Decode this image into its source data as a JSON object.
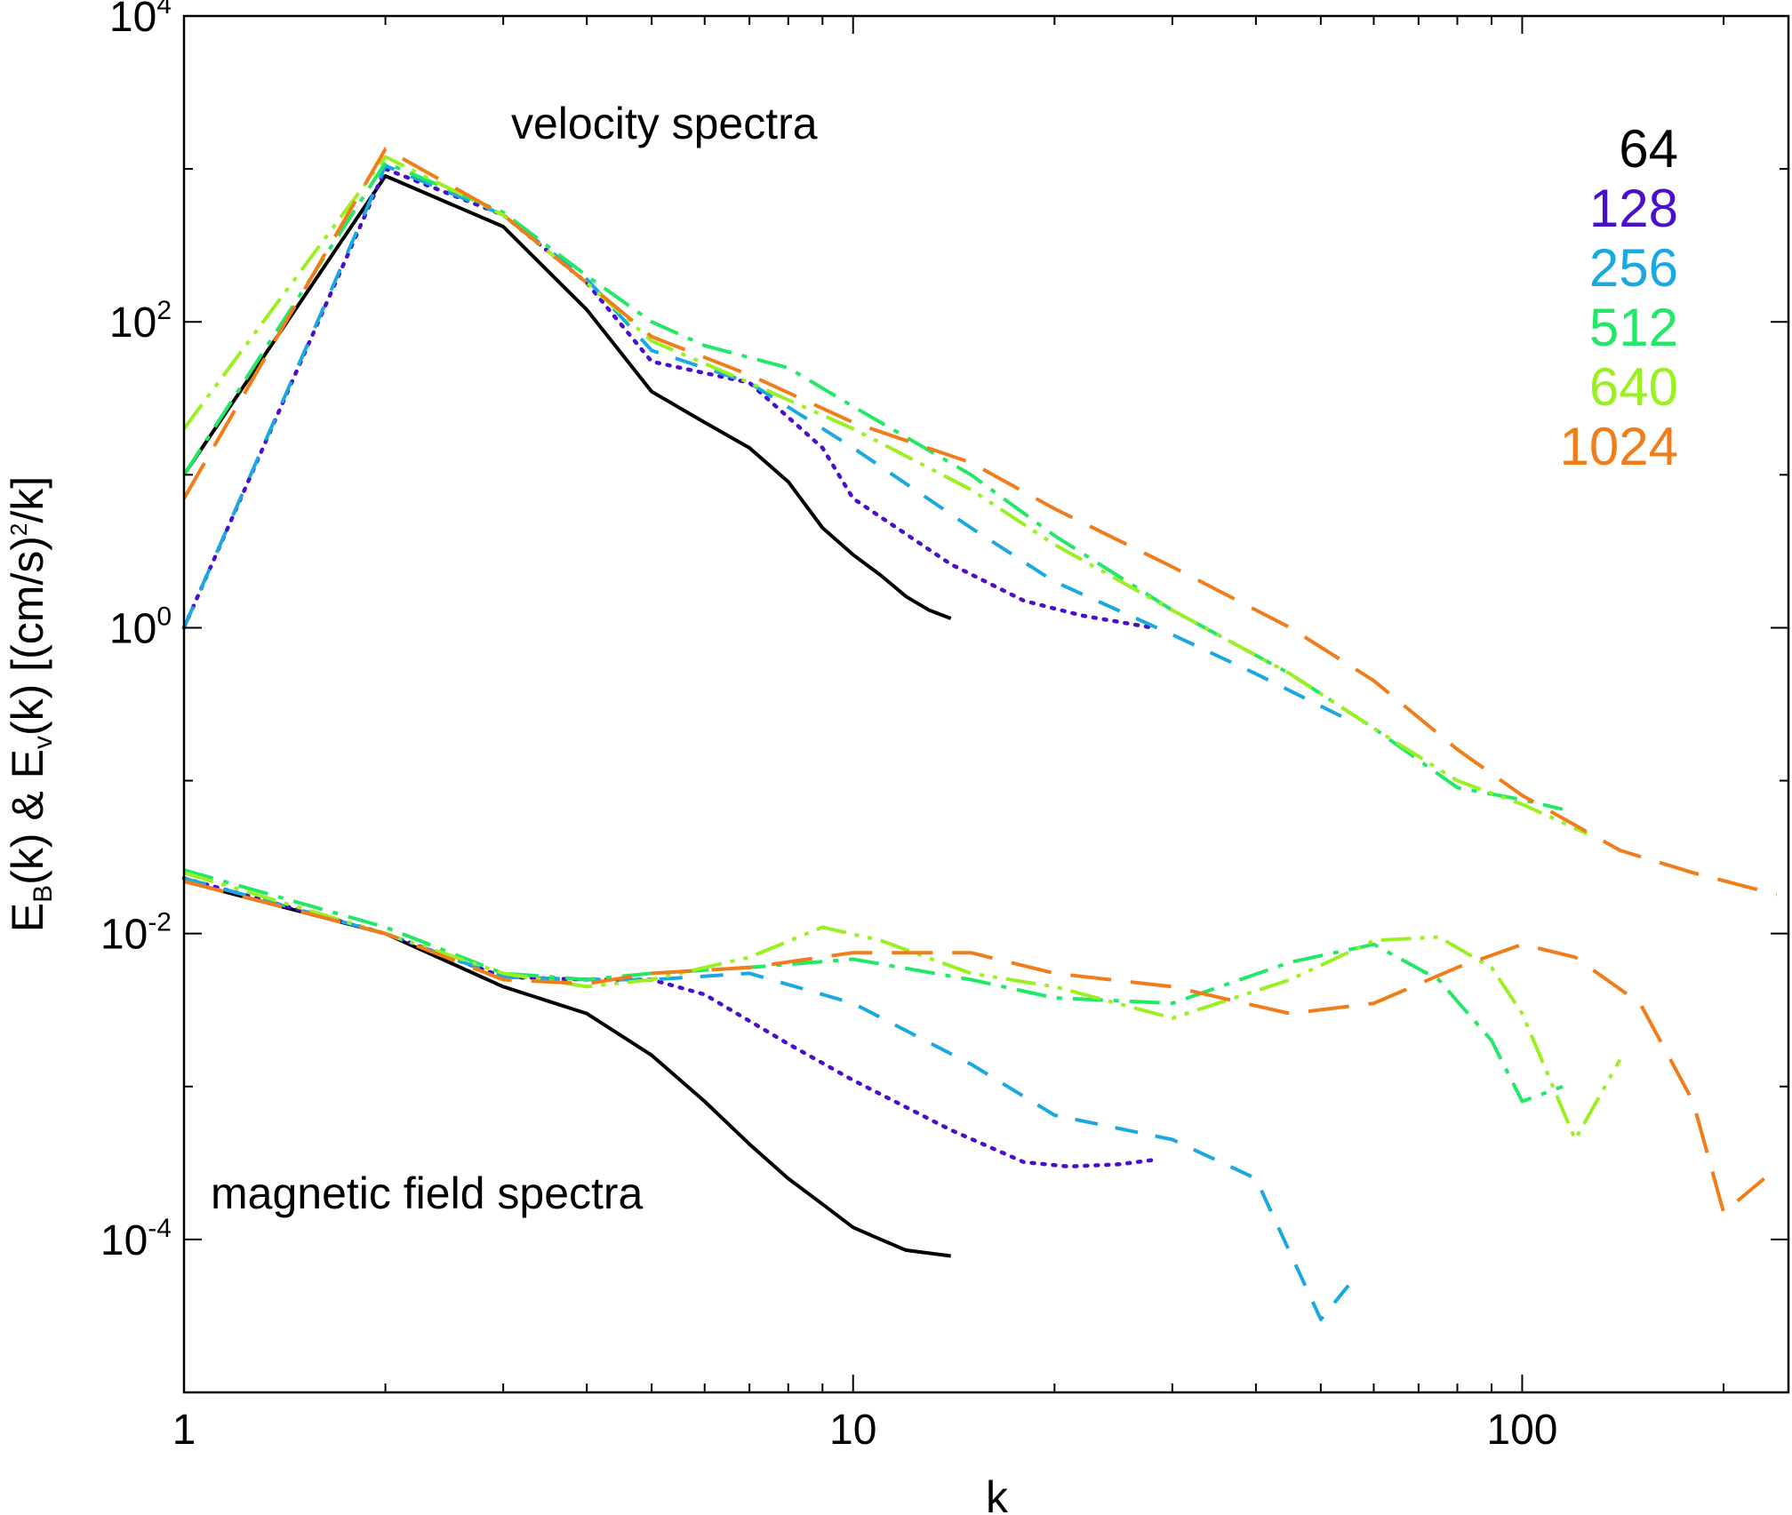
{
  "chart_data": {
    "type": "line",
    "x_scale": "log",
    "y_scale": "log",
    "xlim": [
      1,
      250
    ],
    "ylim": [
      1e-05,
      10000
    ],
    "xlabel": "k",
    "ylabel": {
      "parts": [
        "E",
        "B",
        "(k) & E",
        "v",
        "(k) [(cm/s)",
        "2",
        "/k]"
      ]
    },
    "x_ticks": [
      {
        "value": 1,
        "label": "1"
      },
      {
        "value": 10,
        "label": "10"
      },
      {
        "value": 100,
        "label": "100"
      }
    ],
    "y_ticks": [
      {
        "value": 0.0001,
        "base": "10",
        "exp": "-4"
      },
      {
        "value": 0.01,
        "base": "10",
        "exp": "-2"
      },
      {
        "value": 1,
        "base": "10",
        "exp": "0"
      },
      {
        "value": 100,
        "base": "10",
        "exp": "2"
      },
      {
        "value": 10000,
        "base": "10",
        "exp": "4"
      }
    ],
    "annotations": [
      "velocity spectra",
      "magnetic field spectra"
    ],
    "grid": false,
    "legend_position": "top-right",
    "series": [
      {
        "name": "64",
        "color": "#000000",
        "style": "solid",
        "velocity": [
          [
            1,
            10
          ],
          [
            2,
            900
          ],
          [
            3,
            420
          ],
          [
            4,
            120
          ],
          [
            5,
            35
          ],
          [
            6,
            22
          ],
          [
            7,
            15
          ],
          [
            8,
            9
          ],
          [
            9,
            4.5
          ],
          [
            10,
            3
          ],
          [
            11,
            2.2
          ],
          [
            12,
            1.6
          ],
          [
            13,
            1.3
          ],
          [
            14,
            1.15
          ]
        ],
        "magnetic": [
          [
            1,
            0.022
          ],
          [
            2,
            0.01
          ],
          [
            3,
            0.0045
          ],
          [
            4,
            0.003
          ],
          [
            5,
            0.0016
          ],
          [
            6,
            0.0008
          ],
          [
            7,
            0.00042
          ],
          [
            8,
            0.00025
          ],
          [
            9,
            0.00017
          ],
          [
            10,
            0.00012
          ],
          [
            11,
            0.0001
          ],
          [
            12,
            8.5e-05
          ],
          [
            14,
            7.8e-05
          ]
        ]
      },
      {
        "name": "128",
        "color": "#4a0fcc",
        "style": "dotted",
        "velocity": [
          [
            1,
            1
          ],
          [
            2,
            1000
          ],
          [
            3,
            500
          ],
          [
            4,
            180
          ],
          [
            5,
            55
          ],
          [
            7,
            40
          ],
          [
            9,
            15
          ],
          [
            10,
            7
          ],
          [
            14,
            2.6
          ],
          [
            18,
            1.5
          ],
          [
            22,
            1.2
          ],
          [
            28,
            1.0
          ]
        ],
        "magnetic": [
          [
            1,
            0.023
          ],
          [
            2,
            0.01
          ],
          [
            3,
            0.0052
          ],
          [
            4,
            0.005
          ],
          [
            5,
            0.005
          ],
          [
            6,
            0.004
          ],
          [
            8,
            0.0019
          ],
          [
            10,
            0.0011
          ],
          [
            14,
            0.00052
          ],
          [
            18,
            0.00032
          ],
          [
            21,
            0.0003
          ],
          [
            25,
            0.00031
          ],
          [
            28,
            0.00033
          ]
        ]
      },
      {
        "name": "256",
        "color": "#1aa8e0",
        "style": "dashed",
        "velocity": [
          [
            1,
            1
          ],
          [
            2,
            1050
          ],
          [
            3,
            500
          ],
          [
            4,
            190
          ],
          [
            5,
            65
          ],
          [
            7,
            40
          ],
          [
            10,
            15
          ],
          [
            15,
            4.5
          ],
          [
            20,
            2
          ],
          [
            30,
            0.9
          ],
          [
            40,
            0.5
          ],
          [
            55,
            0.25
          ]
        ],
        "magnetic": [
          [
            1,
            0.023
          ],
          [
            2,
            0.01
          ],
          [
            3,
            0.0052
          ],
          [
            4,
            0.005
          ],
          [
            5,
            0.005
          ],
          [
            7,
            0.0055
          ],
          [
            10,
            0.0035
          ],
          [
            15,
            0.0014
          ],
          [
            20,
            0.00065
          ],
          [
            30,
            0.00045
          ],
          [
            40,
            0.00025
          ],
          [
            50,
            3e-05
          ],
          [
            55,
            5e-05
          ]
        ]
      },
      {
        "name": "512",
        "color": "#22e868",
        "style": "dash-dot",
        "velocity": [
          [
            1,
            10
          ],
          [
            2,
            1100
          ],
          [
            3,
            520
          ],
          [
            4,
            200
          ],
          [
            5,
            100
          ],
          [
            6,
            70
          ],
          [
            8,
            50
          ],
          [
            10,
            28
          ],
          [
            15,
            10
          ],
          [
            20,
            4
          ],
          [
            30,
            1.3
          ],
          [
            45,
            0.5
          ],
          [
            60,
            0.22
          ],
          [
            80,
            0.09
          ],
          [
            100,
            0.075
          ],
          [
            115,
            0.065
          ]
        ],
        "magnetic": [
          [
            1,
            0.026
          ],
          [
            2,
            0.011
          ],
          [
            3,
            0.0055
          ],
          [
            4,
            0.005
          ],
          [
            5,
            0.0055
          ],
          [
            7,
            0.006
          ],
          [
            10,
            0.0068
          ],
          [
            15,
            0.005
          ],
          [
            20,
            0.0038
          ],
          [
            30,
            0.0035
          ],
          [
            45,
            0.0065
          ],
          [
            60,
            0.0085
          ],
          [
            75,
            0.005
          ],
          [
            90,
            0.002
          ],
          [
            100,
            0.0008
          ],
          [
            115,
            0.001
          ]
        ]
      },
      {
        "name": "640",
        "color": "#9af020",
        "style": "dash-dot-dot",
        "velocity": [
          [
            1,
            20
          ],
          [
            2,
            1200
          ],
          [
            3,
            500
          ],
          [
            4,
            180
          ],
          [
            5,
            75
          ],
          [
            7,
            40
          ],
          [
            10,
            20
          ],
          [
            15,
            8
          ],
          [
            20,
            3.5
          ],
          [
            30,
            1.3
          ],
          [
            45,
            0.5
          ],
          [
            60,
            0.22
          ],
          [
            80,
            0.1
          ],
          [
            100,
            0.07
          ],
          [
            125,
            0.045
          ]
        ],
        "magnetic": [
          [
            1,
            0.025
          ],
          [
            2,
            0.01
          ],
          [
            3,
            0.0055
          ],
          [
            4,
            0.0045
          ],
          [
            5,
            0.005
          ],
          [
            7,
            0.007
          ],
          [
            9,
            0.011
          ],
          [
            11,
            0.009
          ],
          [
            15,
            0.0055
          ],
          [
            20,
            0.0045
          ],
          [
            30,
            0.0028
          ],
          [
            45,
            0.005
          ],
          [
            60,
            0.009
          ],
          [
            75,
            0.0095
          ],
          [
            90,
            0.006
          ],
          [
            100,
            0.003
          ],
          [
            120,
            0.00045
          ],
          [
            140,
            0.0015
          ]
        ]
      },
      {
        "name": "1024",
        "color": "#f07d1a",
        "style": "long-dashed",
        "velocity": [
          [
            1,
            7
          ],
          [
            2,
            1350
          ],
          [
            3,
            500
          ],
          [
            4,
            180
          ],
          [
            5,
            80
          ],
          [
            7,
            45
          ],
          [
            10,
            22
          ],
          [
            15,
            12
          ],
          [
            20,
            6
          ],
          [
            30,
            2.5
          ],
          [
            45,
            1
          ],
          [
            60,
            0.45
          ],
          [
            80,
            0.16
          ],
          [
            100,
            0.08
          ],
          [
            140,
            0.035
          ],
          [
            180,
            0.025
          ],
          [
            240,
            0.018
          ]
        ],
        "magnetic": [
          [
            1,
            0.022
          ],
          [
            2,
            0.01
          ],
          [
            3,
            0.005
          ],
          [
            4,
            0.0047
          ],
          [
            5,
            0.0055
          ],
          [
            7,
            0.006
          ],
          [
            10,
            0.0075
          ],
          [
            15,
            0.0075
          ],
          [
            20,
            0.0055
          ],
          [
            30,
            0.0045
          ],
          [
            45,
            0.003
          ],
          [
            60,
            0.0035
          ],
          [
            80,
            0.006
          ],
          [
            100,
            0.0085
          ],
          [
            120,
            0.007
          ],
          [
            150,
            0.0035
          ],
          [
            180,
            0.0008
          ],
          [
            200,
            0.00015
          ],
          [
            230,
            0.00025
          ]
        ]
      }
    ]
  }
}
